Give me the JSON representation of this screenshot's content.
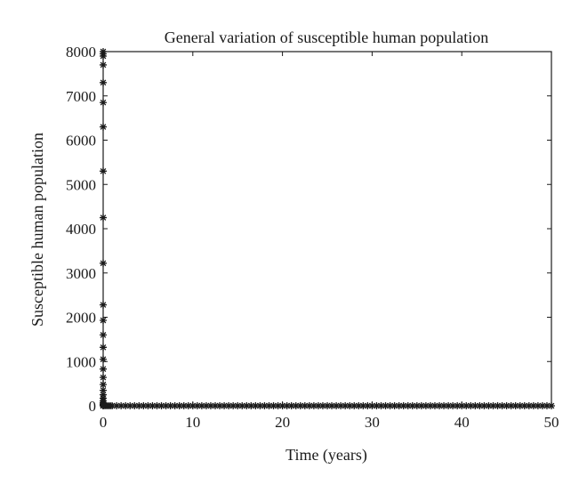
{
  "chart_data": {
    "type": "scatter",
    "title": "General variation of susceptible human population",
    "xlabel": "Time (years)",
    "ylabel": "Susceptible human population",
    "xlim": [
      0,
      50
    ],
    "ylim": [
      0,
      8000
    ],
    "xticks": [
      0,
      10,
      20,
      30,
      40,
      50
    ],
    "yticks": [
      0,
      1000,
      2000,
      3000,
      4000,
      5000,
      6000,
      7000,
      8000
    ],
    "xtick_labels": [
      "0",
      "10",
      "20",
      "30",
      "40",
      "50"
    ],
    "ytick_labels": [
      "0",
      "1000",
      "2000",
      "3000",
      "4000",
      "5000",
      "6000",
      "7000",
      "8000"
    ],
    "grid": false,
    "marker": "asterisk",
    "marker_color": "#1a1a1a",
    "series": [
      {
        "x": [
          0,
          0,
          0,
          0,
          0,
          0,
          0,
          0,
          0,
          0,
          0,
          0,
          0,
          0,
          0,
          0,
          0,
          0,
          0,
          0,
          0,
          0,
          0,
          0,
          0,
          0,
          0,
          0,
          0,
          0
        ],
        "y": [
          8000,
          7950,
          7900,
          7700,
          7300,
          6850,
          6300,
          5300,
          4250,
          3220,
          2280,
          1930,
          1600,
          1320,
          1050,
          830,
          640,
          480,
          350,
          250,
          170,
          110,
          70,
          40,
          20,
          10,
          5,
          2,
          1,
          0
        ]
      },
      {
        "x": [
          0.2,
          0.4,
          0.6,
          0.8,
          1.0,
          1.5,
          2.0,
          2.5,
          3.0,
          3.5,
          4.0,
          4.5,
          5.0,
          5.5,
          6.0,
          6.5,
          7.0,
          7.5,
          8.0,
          8.5,
          9.0,
          9.5,
          10.0,
          10.5,
          11.0,
          11.5,
          12.0,
          12.5,
          13.0,
          13.5,
          14.0,
          14.5,
          15.0,
          15.5,
          16.0,
          16.5,
          17.0,
          17.5,
          18.0,
          18.5,
          19.0,
          19.5,
          20.0,
          20.5,
          21.0,
          21.5,
          22.0,
          22.5,
          23.0,
          23.5,
          24.0,
          24.5,
          25.0,
          25.5,
          26.0,
          26.5,
          27.0,
          27.5,
          28.0,
          28.5,
          29.0,
          29.5,
          30.0,
          30.5,
          31.0,
          31.5,
          32.0,
          32.5,
          33.0,
          33.5,
          34.0,
          34.5,
          35.0,
          35.5,
          36.0,
          36.5,
          37.0,
          37.5,
          38.0,
          38.5,
          39.0,
          39.5,
          40.0,
          40.5,
          41.0,
          41.5,
          42.0,
          42.5,
          43.0,
          43.5,
          44.0,
          44.5,
          45.0,
          45.5,
          46.0,
          46.5,
          47.0,
          47.5,
          48.0,
          48.5,
          49.0,
          49.5,
          50.0
        ],
        "y": [
          0,
          0,
          0,
          0,
          0,
          0,
          0,
          0,
          0,
          0,
          0,
          0,
          0,
          0,
          0,
          0,
          0,
          0,
          0,
          0,
          0,
          0,
          0,
          0,
          0,
          0,
          0,
          0,
          0,
          0,
          0,
          0,
          0,
          0,
          0,
          0,
          0,
          0,
          0,
          0,
          0,
          0,
          0,
          0,
          0,
          0,
          0,
          0,
          0,
          0,
          0,
          0,
          0,
          0,
          0,
          0,
          0,
          0,
          0,
          0,
          0,
          0,
          0,
          0,
          0,
          0,
          0,
          0,
          0,
          0,
          0,
          0,
          0,
          0,
          0,
          0,
          0,
          0,
          0,
          0,
          0,
          0,
          0,
          0,
          0,
          0,
          0,
          0,
          0,
          0,
          0,
          0,
          0,
          0,
          0,
          0,
          0,
          0,
          0,
          0,
          0,
          0,
          0
        ]
      }
    ]
  }
}
